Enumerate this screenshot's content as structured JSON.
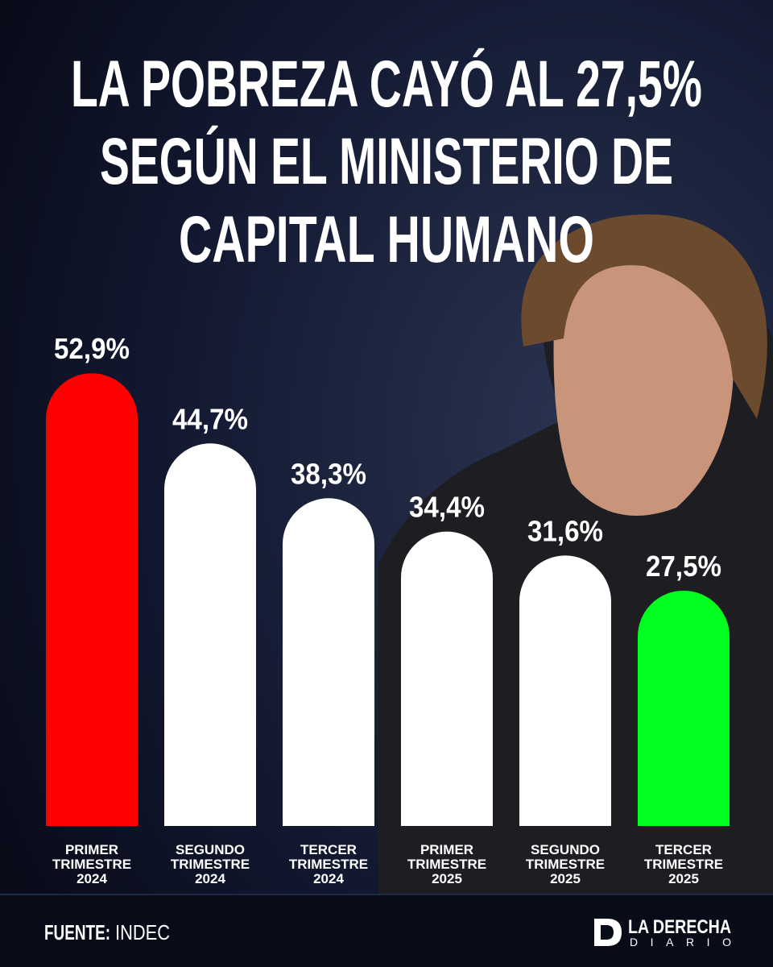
{
  "chart_data": {
    "type": "bar",
    "title_lines": [
      "LA POBREZA CAYÓ AL 27,5%",
      "SEGÚN EL MINISTERIO DE",
      "CAPITAL HUMANO"
    ],
    "categories": [
      [
        "PRIMER",
        "TRIMESTRE",
        "2024"
      ],
      [
        "SEGUNDO",
        "TRIMESTRE",
        "2024"
      ],
      [
        "TERCER",
        "TRIMESTRE",
        "2024"
      ],
      [
        "PRIMER",
        "TRIMESTRE",
        "2025"
      ],
      [
        "SEGUNDO",
        "TRIMESTRE",
        "2025"
      ],
      [
        "TERCER",
        "TRIMESTRE",
        "2025"
      ]
    ],
    "values": [
      52.9,
      44.7,
      38.3,
      34.4,
      31.6,
      27.5
    ],
    "value_labels": [
      "52,9%",
      "44,7%",
      "38,3%",
      "34,4%",
      "31,6%",
      "27,5%"
    ],
    "colors": [
      "#ff0000",
      "#ffffff",
      "#ffffff",
      "#ffffff",
      "#ffffff",
      "#00ff1e"
    ]
  },
  "footer": {
    "source_label": "FUENTE:",
    "source": "INDEC",
    "brand": "LA DERECHA",
    "brand_sub": "DIARIO"
  }
}
